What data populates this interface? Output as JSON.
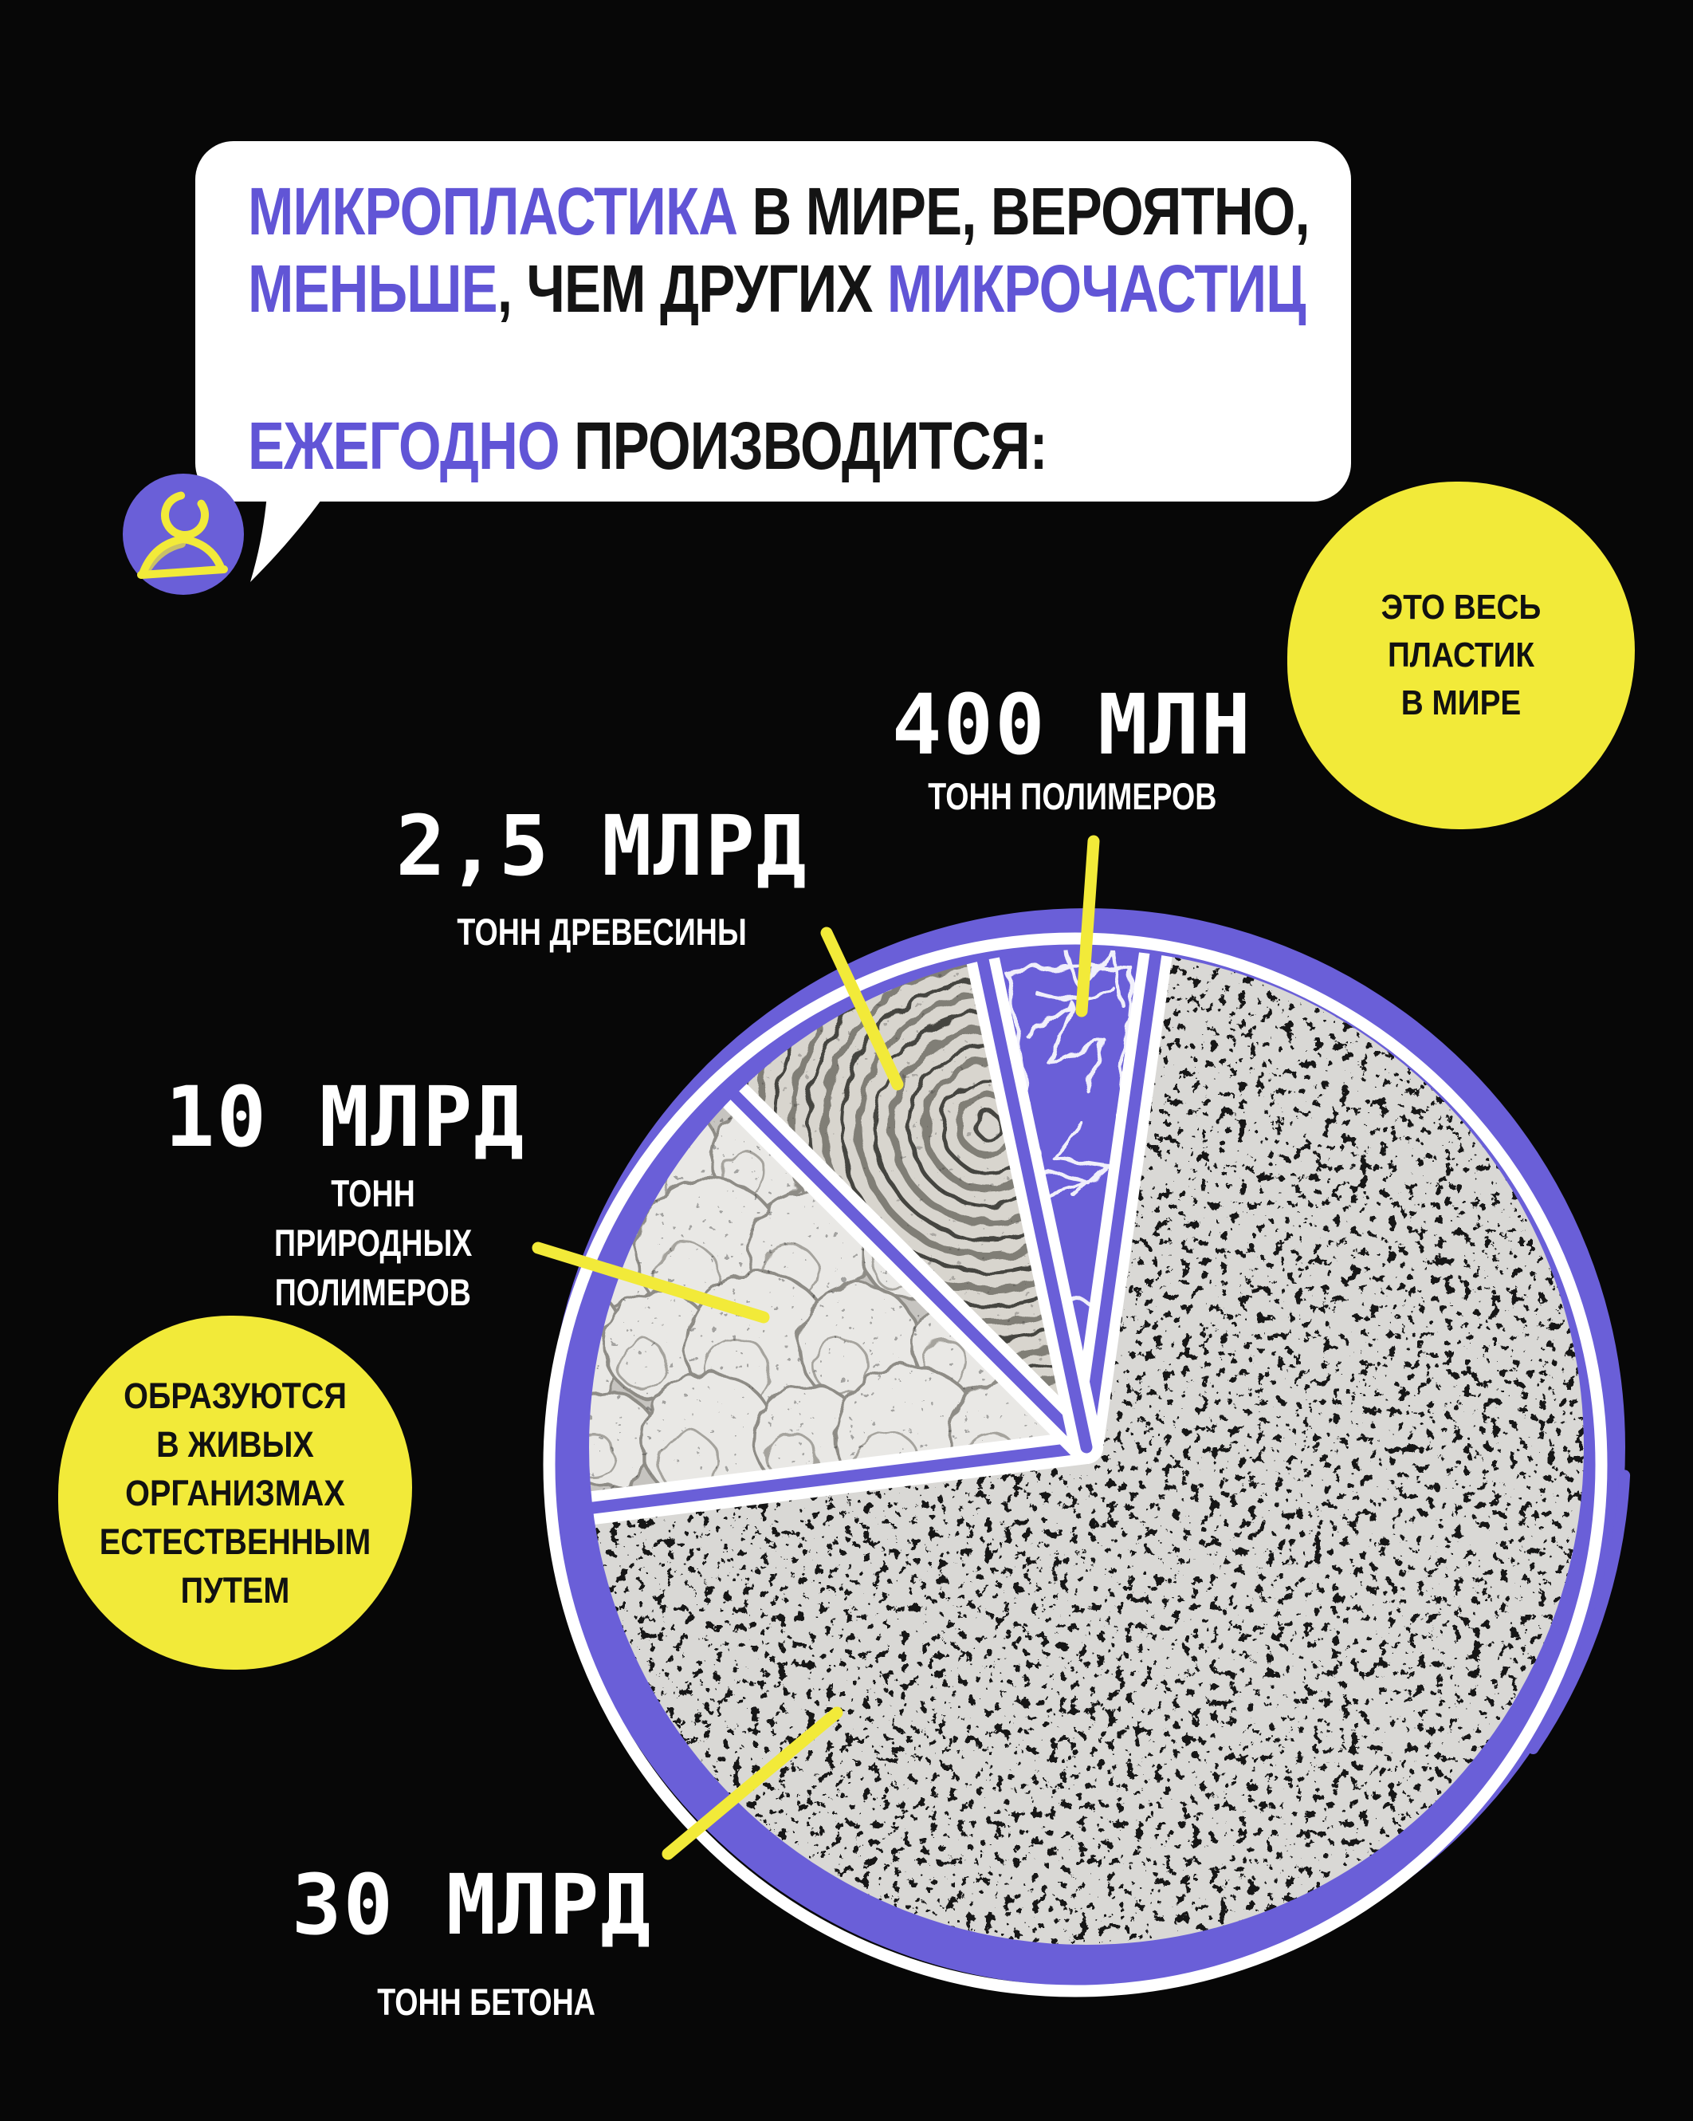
{
  "bubble": {
    "line1_accent": "МИКРОПЛАСТИКА",
    "line1_rest": " В МИРЕ, ВЕРОЯТНО,",
    "line2_accent": "МЕНЬШЕ",
    "line2_mid": ", ЧЕМ ДРУГИХ ",
    "line2_accent2": "МИКРОЧАСТИЦ",
    "line3_accent": "ЕЖЕГОДНО",
    "line3_rest": " ПРОИЗВОДИТСЯ:"
  },
  "badge_right": {
    "lines": [
      "ЭТО ВЕСЬ",
      "ПЛАСТИК",
      "В МИРЕ"
    ]
  },
  "badge_left": {
    "lines": [
      "ОБРАЗУЮТСЯ",
      "В ЖИВЫХ",
      "ОРГАНИЗМАХ",
      "ЕСТЕСТВЕННЫМ",
      "ПУТЕМ"
    ]
  },
  "chart_data": {
    "type": "pie",
    "title": "Ежегодно производится:",
    "unit": "тонн в год",
    "legend_position": "callout-labels",
    "slices": [
      {
        "name": "бетон",
        "label": "30 МЛРД",
        "sublabel_lines": [
          "ТОНН БЕТОНА"
        ],
        "value_bln_tonnes": 30,
        "start_deg": 8,
        "end_deg": 263,
        "texture": "concrete"
      },
      {
        "name": "природные полимеры",
        "label": "10 МЛРД",
        "sublabel_lines": [
          "ТОНН",
          "ПРИРОДНЫХ",
          "ПОЛИМЕРОВ"
        ],
        "value_bln_tonnes": 10,
        "start_deg": 263,
        "end_deg": 315,
        "texture": "cotton",
        "note": "образуются в живых организмах естественным путем"
      },
      {
        "name": "древесина",
        "label": "2,5 МЛРД",
        "sublabel_lines": [
          "ТОНН ДРЕВЕСИНЫ"
        ],
        "value_bln_tonnes": 2.5,
        "start_deg": 315,
        "end_deg": 348,
        "texture": "wood"
      },
      {
        "name": "полимеры (пластик)",
        "label": "400 МЛН",
        "sublabel_lines": [
          "ТОНН ПОЛИМЕРОВ"
        ],
        "value_bln_tonnes": 0.4,
        "start_deg": 348,
        "end_deg": 368,
        "texture": "plastic",
        "note": "это весь пластик в мире"
      }
    ]
  },
  "colors": {
    "accent_purple": "#6155d6",
    "pie_purple": "#6a5fd8",
    "yellow": "#f2ea39",
    "paper": "#ffffff",
    "ink": "#141414",
    "background": "#070707"
  }
}
